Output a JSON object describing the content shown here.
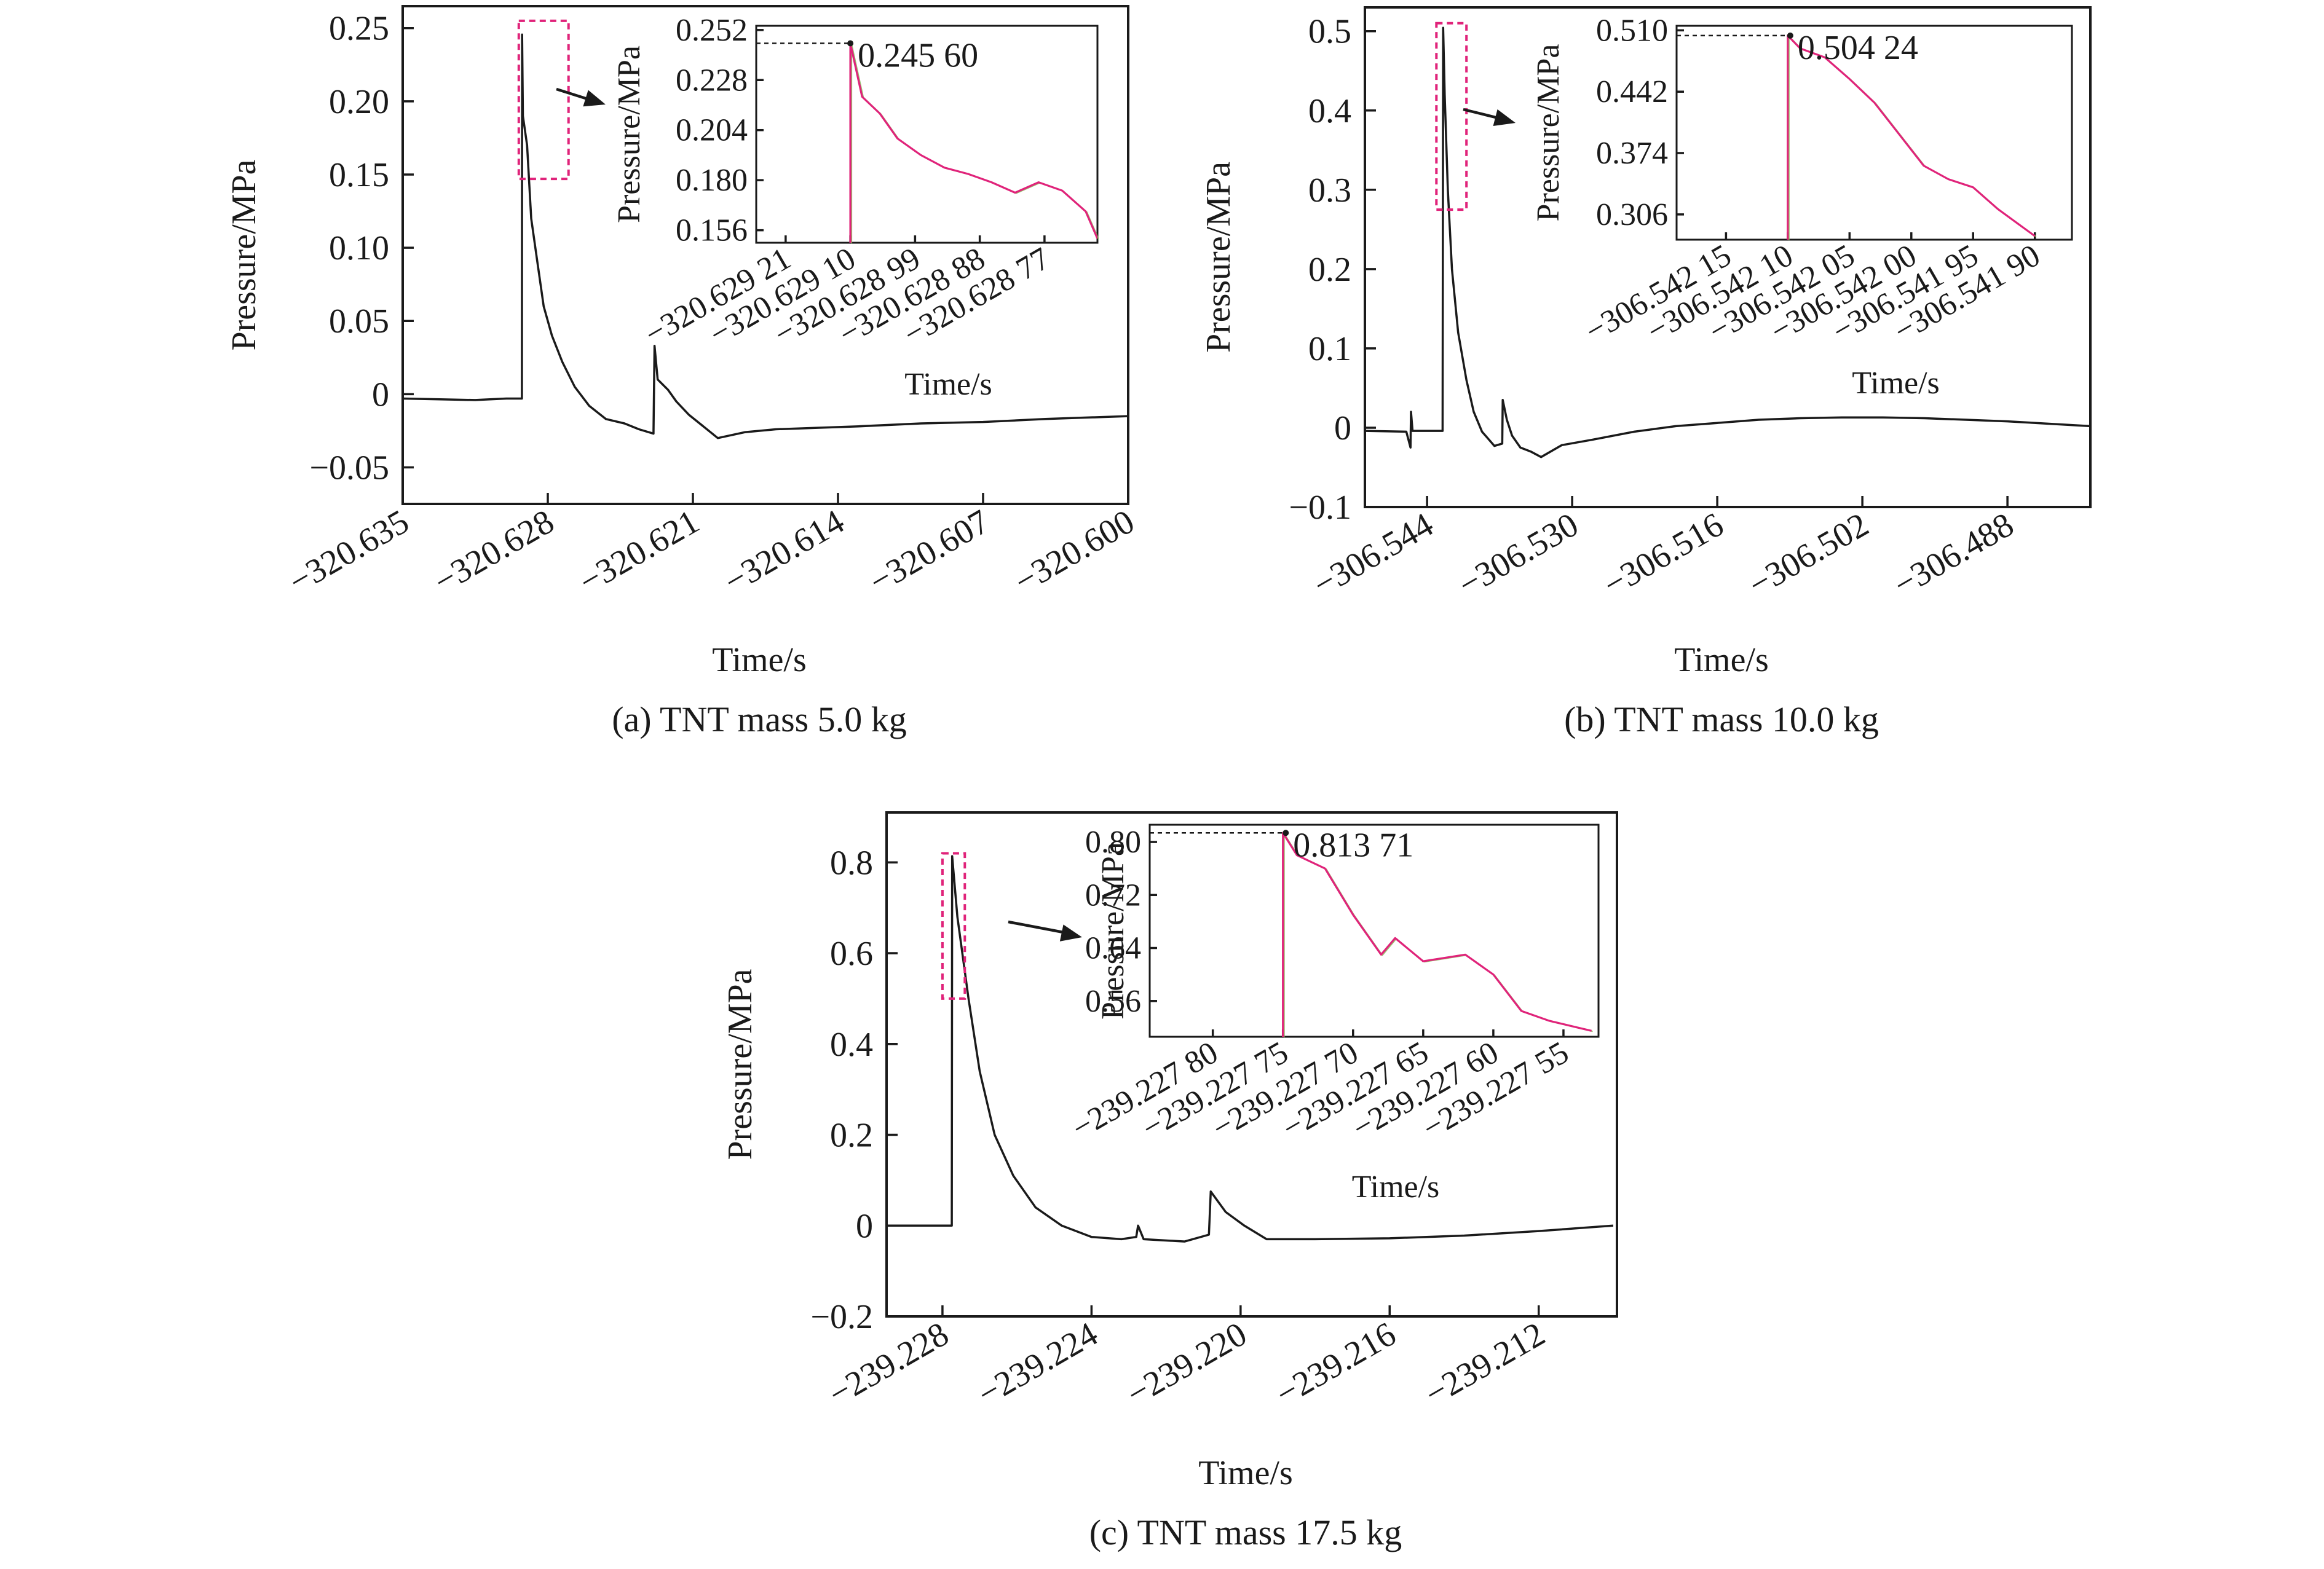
{
  "chart_data": [
    {
      "type": "line",
      "caption": "(a) TNT mass 5.0 kg",
      "xlabel": "Time/s",
      "ylabel": "Pressure/MPa",
      "xticks": [
        "−320.635",
        "−320.628",
        "−320.621",
        "−320.614",
        "−320.607",
        "−320.600"
      ],
      "xtick_values": [
        -320.635,
        -320.628,
        -320.621,
        -320.614,
        -320.607,
        -320.6
      ],
      "yticks": [
        "−0.05",
        "0",
        "0.05",
        "0.10",
        "0.15",
        "0.20",
        "0.25"
      ],
      "ytick_values": [
        -0.05,
        0,
        0.05,
        0.1,
        0.15,
        0.2,
        0.25
      ],
      "xlim": [
        -320.635,
        -320.6
      ],
      "ylim": [
        -0.075,
        0.265
      ],
      "series": [
        {
          "x": [
            -320.635,
            -320.6315,
            -320.63,
            -320.6294,
            -320.62925,
            -320.62924,
            -320.6292,
            -320.629,
            -320.6288,
            -320.6285,
            -320.6282,
            -320.6278,
            -320.6273,
            -320.6267,
            -320.626,
            -320.6252,
            -320.6243,
            -320.6236,
            -320.6229,
            -320.62285,
            -320.6227,
            -320.6222,
            -320.6218,
            -320.6212,
            -320.6205,
            -320.6198,
            -320.6185,
            -320.617,
            -320.615,
            -320.613,
            -320.61,
            -320.607,
            -320.604,
            -320.6
          ],
          "y": [
            -0.003,
            -0.004,
            -0.003,
            -0.003,
            -0.003,
            0.2456,
            0.19,
            0.17,
            0.12,
            0.09,
            0.06,
            0.04,
            0.022,
            0.005,
            -0.008,
            -0.017,
            -0.02,
            -0.024,
            -0.027,
            0.033,
            0.01,
            0.003,
            -0.005,
            -0.014,
            -0.022,
            -0.03,
            -0.026,
            -0.024,
            -0.023,
            -0.022,
            -0.02,
            -0.019,
            -0.017,
            -0.015
          ]
        }
      ],
      "highlight_box": {
        "x": [
          -320.6294,
          -320.627
        ],
        "y": [
          0.147,
          0.255
        ]
      },
      "inset": {
        "xlabel": "Time/s",
        "ylabel": "Pressure/MPa",
        "xticks": [
          "−320.629 21",
          "−320.629 10",
          "−320.628 99",
          "−320.628 88",
          "−320.628 77"
        ],
        "xtick_values": [
          -320.62921,
          -320.6291,
          -320.62899,
          -320.62888,
          -320.62877
        ],
        "yticks": [
          "0.156",
          "0.180",
          "0.204",
          "0.228",
          "0.252"
        ],
        "ytick_values": [
          0.156,
          0.18,
          0.204,
          0.228,
          0.252
        ],
        "xlim": [
          -320.62926,
          -320.62868
        ],
        "ylim": [
          0.15,
          0.254
        ],
        "peak_label": "0.245 60",
        "peak": {
          "x": -320.6291,
          "y": 0.2456
        },
        "series": [
          {
            "x": [
              -320.6291,
              -320.6291,
              -320.62908,
              -320.62905,
              -320.62902,
              -320.62898,
              -320.62894,
              -320.6289,
              -320.62886,
              -320.62882,
              -320.62878,
              -320.62874,
              -320.6287,
              -320.62868
            ],
            "y": [
              0.15,
              0.2456,
              0.22,
              0.212,
              0.2,
              0.192,
              0.186,
              0.183,
              0.179,
              0.174,
              0.179,
              0.175,
              0.165,
              0.152
            ]
          }
        ]
      }
    },
    {
      "type": "line",
      "caption": "(b) TNT mass 10.0 kg",
      "xlabel": "Time/s",
      "ylabel": "Pressure/MPa",
      "xticks": [
        "−306.544",
        "−306.530",
        "−306.516",
        "−306.502",
        "−306.488"
      ],
      "xtick_values": [
        -306.544,
        -306.53,
        -306.516,
        -306.502,
        -306.488
      ],
      "yticks": [
        "−0.1",
        "0",
        "0.1",
        "0.2",
        "0.3",
        "0.4",
        "0.5"
      ],
      "ytick_values": [
        -0.1,
        0,
        0.1,
        0.2,
        0.3,
        0.4,
        0.5
      ],
      "xlim": [
        -306.55,
        -306.48
      ],
      "ylim": [
        -0.1,
        0.53
      ],
      "series": [
        {
          "x": [
            -306.55,
            -306.546,
            -306.5456,
            -306.54555,
            -306.5454,
            -306.544,
            -306.5425,
            -306.54245,
            -306.5423,
            -306.542,
            -306.5416,
            -306.541,
            -306.5402,
            -306.5395,
            -306.5387,
            -306.5375,
            -306.53675,
            -306.5367,
            -306.5363,
            -306.5358,
            -306.535,
            -306.534,
            -306.533,
            -306.531,
            -306.528,
            -306.524,
            -306.52,
            -306.516,
            -306.512,
            -306.508,
            -306.504,
            -306.5,
            -306.496,
            -306.492,
            -306.488,
            -306.484,
            -306.48
          ],
          "y": [
            -0.004,
            -0.005,
            -0.025,
            0.02,
            -0.004,
            -0.004,
            -0.004,
            0.5042,
            0.42,
            0.3,
            0.2,
            0.12,
            0.06,
            0.02,
            -0.005,
            -0.023,
            -0.02,
            0.035,
            0.01,
            -0.01,
            -0.025,
            -0.03,
            -0.037,
            -0.022,
            -0.015,
            -0.005,
            0.002,
            0.006,
            0.01,
            0.012,
            0.013,
            0.013,
            0.012,
            0.01,
            0.008,
            0.005,
            0.002
          ]
        }
      ],
      "highlight_box": {
        "x": [
          -306.5431,
          -306.5402
        ],
        "y": [
          0.275,
          0.51
        ]
      },
      "inset": {
        "xlabel": "Time/s",
        "ylabel": "Pressure/MPa",
        "xticks": [
          "−306.542 15",
          "−306.542 10",
          "−306.542 05",
          "−306.542 00",
          "−306.541 95",
          "−306.541 90"
        ],
        "xtick_values": [
          -306.54215,
          -306.5421,
          -306.54205,
          -306.542,
          -306.54195,
          -306.5419
        ],
        "yticks": [
          "0.306",
          "0.374",
          "0.442",
          "0.510"
        ],
        "ytick_values": [
          0.306,
          0.374,
          0.442,
          0.51
        ],
        "xlim": [
          -306.54219,
          -306.54187
        ],
        "ylim": [
          0.278,
          0.515
        ],
        "peak_label": "0.504 24",
        "peak": {
          "x": -306.542098,
          "y": 0.5042
        },
        "series": [
          {
            "x": [
              -306.5421,
              -306.5421,
              -306.54209,
              -306.54207,
              -306.54205,
              -306.54203,
              -306.54201,
              -306.54199,
              -306.54197,
              -306.54195,
              -306.54193,
              -306.54191,
              -306.5419
            ],
            "y": [
              0.278,
              0.5042,
              0.49,
              0.48,
              0.456,
              0.43,
              0.395,
              0.36,
              0.345,
              0.336,
              0.312,
              0.292,
              0.282
            ]
          }
        ]
      }
    },
    {
      "type": "line",
      "caption": "(c) TNT mass 17.5 kg",
      "xlabel": "Time/s",
      "ylabel": "Pressure/MPa",
      "xticks": [
        "−239.228",
        "−239.224",
        "−239.220",
        "−239.216",
        "−239.212"
      ],
      "xtick_values": [
        -239.228,
        -239.224,
        -239.22,
        -239.216,
        -239.212
      ],
      "yticks": [
        "−0.2",
        "0",
        "0.2",
        "0.4",
        "0.6",
        "0.8"
      ],
      "ytick_values": [
        -0.2,
        0,
        0.2,
        0.4,
        0.6,
        0.8
      ],
      "xlim": [
        -239.2295,
        -239.2099
      ],
      "ylim": [
        -0.2,
        0.91
      ],
      "series": [
        {
          "x": [
            -239.2295,
            -239.2288,
            -239.22775,
            -239.22774,
            -239.2276,
            -239.2273,
            -239.227,
            -239.2266,
            -239.2261,
            -239.2255,
            -239.2248,
            -239.224,
            -239.2232,
            -239.2228,
            -239.22275,
            -239.2226,
            -239.2215,
            -239.22085,
            -239.2208,
            -239.2204,
            -239.2199,
            -239.2193,
            -239.218,
            -239.216,
            -239.214,
            -239.212,
            -239.21
          ],
          "y": [
            0.0,
            0.0,
            0.0,
            0.8137,
            0.68,
            0.5,
            0.34,
            0.2,
            0.11,
            0.04,
            0.0,
            -0.025,
            -0.03,
            -0.025,
            0.0,
            -0.03,
            -0.035,
            -0.02,
            0.075,
            0.03,
            0.0,
            -0.03,
            -0.03,
            -0.028,
            -0.022,
            -0.012,
            0.0
          ]
        }
      ],
      "highlight_box": {
        "x": [
          -239.228,
          -239.2274
        ],
        "y": [
          0.5,
          0.82
        ]
      },
      "inset": {
        "xlabel": "Time/s",
        "ylabel": "Pressure/MPa",
        "xticks": [
          "−239.227 80",
          "−239.227 75",
          "−239.227 70",
          "−239.227 65",
          "−239.227 60",
          "−239.227 55"
        ],
        "xtick_values": [
          -239.2278,
          -239.22775,
          -239.2277,
          -239.22765,
          -239.2276,
          -239.22755
        ],
        "yticks": [
          "0.56",
          "0.64",
          "0.72",
          "0.80"
        ],
        "ytick_values": [
          0.56,
          0.64,
          0.72,
          0.8
        ],
        "xlim": [
          -239.227845,
          -239.227525
        ],
        "ylim": [
          0.506,
          0.826
        ],
        "peak_label": "0.813 71",
        "peak": {
          "x": -239.227748,
          "y": 0.8137
        },
        "series": [
          {
            "x": [
              -239.22775,
              -239.22775,
              -239.22774,
              -239.22772,
              -239.2277,
              -239.22768,
              -239.22767,
              -239.22765,
              -239.22762,
              -239.2276,
              -239.22758,
              -239.22756,
              -239.22754,
              -239.22753
            ],
            "y": [
              0.506,
              0.8137,
              0.78,
              0.76,
              0.69,
              0.63,
              0.655,
              0.62,
              0.63,
              0.6,
              0.545,
              0.53,
              0.52,
              0.515
            ]
          }
        ]
      }
    }
  ]
}
